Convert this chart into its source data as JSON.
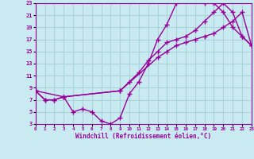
{
  "xlabel": "Windchill (Refroidissement éolien,°C)",
  "bg_color": "#c8eaf0",
  "grid_color": "#aad4dc",
  "line_color": "#990099",
  "xlim": [
    0,
    23
  ],
  "ylim": [
    3,
    23
  ],
  "xticks": [
    0,
    1,
    2,
    3,
    4,
    5,
    6,
    7,
    8,
    9,
    10,
    11,
    12,
    13,
    14,
    15,
    16,
    17,
    18,
    19,
    20,
    21,
    22,
    23
  ],
  "yticks": [
    3,
    5,
    7,
    9,
    11,
    13,
    15,
    17,
    19,
    21,
    23
  ],
  "curve1_x": [
    0,
    1,
    2,
    3,
    4,
    5,
    6,
    7,
    8,
    9,
    10,
    11,
    12,
    13,
    14,
    15,
    16,
    17,
    18,
    19,
    20,
    21,
    22,
    23
  ],
  "curve1_y": [
    8.5,
    7,
    7,
    7.5,
    5,
    5.5,
    5,
    3.5,
    3,
    4,
    8,
    10,
    13,
    17,
    19.5,
    23,
    23.5,
    23.5,
    23,
    23,
    21.5,
    19,
    17.5,
    16
  ],
  "curve2_x": [
    0,
    1,
    2,
    3,
    9,
    10,
    11,
    12,
    13,
    14,
    15,
    16,
    17,
    18,
    19,
    20,
    21,
    22,
    23
  ],
  "curve2_y": [
    8.5,
    7,
    7,
    7.5,
    8.5,
    10,
    11.5,
    13.5,
    15,
    16.5,
    17,
    17.5,
    18.5,
    20,
    21.5,
    23,
    21.5,
    17.5,
    16
  ],
  "curve3_x": [
    0,
    3,
    9,
    13,
    14,
    15,
    16,
    17,
    18,
    19,
    20,
    21,
    22,
    23
  ],
  "curve3_y": [
    8.5,
    7.5,
    8.5,
    14,
    15,
    16,
    16.5,
    17,
    17.5,
    18,
    19,
    20,
    21.5,
    16
  ],
  "marker": "+",
  "marker_size": 5,
  "linewidth": 1.0
}
